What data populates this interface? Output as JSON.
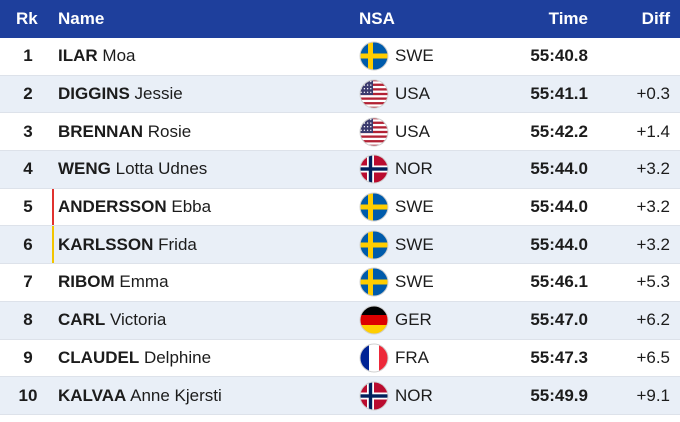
{
  "header": {
    "rk": "Rk",
    "name": "Name",
    "nsa": "NSA",
    "time": "Time",
    "diff": "Diff"
  },
  "colors": {
    "header_bg": "#1e3f9c",
    "row_alt_bg": "#e9eff7",
    "marker_red": "#e0322f",
    "marker_yellow": "#f2c500"
  },
  "rows": [
    {
      "rk": "1",
      "last": "ILAR",
      "first": "Moa",
      "nsa": "SWE",
      "flag": "swe-flag-icon",
      "time": "55:40.8",
      "diff": ""
    },
    {
      "rk": "2",
      "last": "DIGGINS",
      "first": "Jessie",
      "nsa": "USA",
      "flag": "usa-flag-icon",
      "time": "55:41.1",
      "diff": "+0.3"
    },
    {
      "rk": "3",
      "last": "BRENNAN",
      "first": "Rosie",
      "nsa": "USA",
      "flag": "usa-flag-icon",
      "time": "55:42.2",
      "diff": "+1.4"
    },
    {
      "rk": "4",
      "last": "WENG",
      "first": "Lotta Udnes",
      "nsa": "NOR",
      "flag": "nor-flag-icon",
      "time": "55:44.0",
      "diff": "+3.2"
    },
    {
      "rk": "5",
      "last": "ANDERSSON",
      "first": "Ebba",
      "nsa": "SWE",
      "flag": "swe-flag-icon",
      "time": "55:44.0",
      "diff": "+3.2"
    },
    {
      "rk": "6",
      "last": "KARLSSON",
      "first": "Frida",
      "nsa": "SWE",
      "flag": "swe-flag-icon",
      "time": "55:44.0",
      "diff": "+3.2"
    },
    {
      "rk": "7",
      "last": "RIBOM",
      "first": "Emma",
      "nsa": "SWE",
      "flag": "swe-flag-icon",
      "time": "55:46.1",
      "diff": "+5.3"
    },
    {
      "rk": "8",
      "last": "CARL",
      "first": "Victoria",
      "nsa": "GER",
      "flag": "ger-flag-icon",
      "time": "55:47.0",
      "diff": "+6.2"
    },
    {
      "rk": "9",
      "last": "CLAUDEL",
      "first": "Delphine",
      "nsa": "FRA",
      "flag": "fra-flag-icon",
      "time": "55:47.3",
      "diff": "+6.5"
    },
    {
      "rk": "10",
      "last": "KALVAA",
      "first": "Anne Kjersti",
      "nsa": "NOR",
      "flag": "nor-flag-icon",
      "time": "55:49.9",
      "diff": "+9.1"
    }
  ]
}
